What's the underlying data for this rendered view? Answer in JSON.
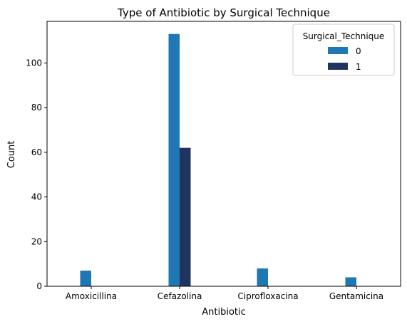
{
  "chart_data": {
    "type": "bar",
    "title": "Type of Antibiotic by Surgical Technique",
    "xlabel": "Antibiotic",
    "ylabel": "Count",
    "categories": [
      "Amoxicillina",
      "Cefazolina",
      "Ciprofloxacina",
      "Gentamicina"
    ],
    "series": [
      {
        "name": "0",
        "values": [
          7,
          113,
          8,
          4
        ],
        "color": "#1f77b4"
      },
      {
        "name": "1",
        "values": [
          0,
          62,
          0,
          0
        ],
        "color": "#1f3560"
      }
    ],
    "ylim": [
      0,
      118.65
    ],
    "yticks": [
      0,
      20,
      40,
      60,
      80,
      100
    ],
    "grid": false,
    "legend": {
      "title": "Surgical_Technique",
      "placement": "top-right"
    }
  }
}
